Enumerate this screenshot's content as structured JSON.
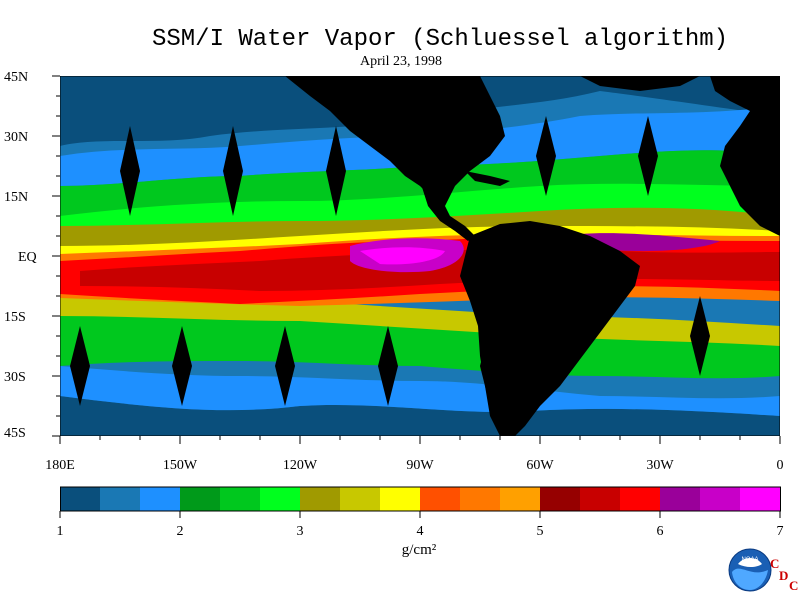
{
  "title": "SSM/I Water Vapor (Schluessel algorithm)",
  "date": "April 23, 1998",
  "lat_labels": [
    "45N",
    "30N",
    "15N",
    "EQ",
    "15S",
    "30S",
    "45S"
  ],
  "lon_labels": [
    "180E",
    "150W",
    "120W",
    "90W",
    "60W",
    "30W",
    "0"
  ],
  "colorbar": {
    "tick_labels": [
      "1",
      "2",
      "3",
      "4",
      "5",
      "6",
      "7"
    ],
    "units": "g/cm²",
    "min": 1,
    "max": 7,
    "colors": [
      "#0a4f7c",
      "#1a78b4",
      "#1e90ff",
      "#009a1a",
      "#00c81e",
      "#00ff1e",
      "#a09a00",
      "#c8c800",
      "#ffff00",
      "#ff5000",
      "#ff7800",
      "#ffa000",
      "#960000",
      "#c80000",
      "#ff0000",
      "#9a009a",
      "#c800c8",
      "#ff00ff"
    ]
  },
  "logo": {
    "noaa": "NOAA",
    "c": "C",
    "d": "D",
    "c2": "C"
  },
  "colors": {
    "land": "#000000",
    "missing": "#000000"
  }
}
